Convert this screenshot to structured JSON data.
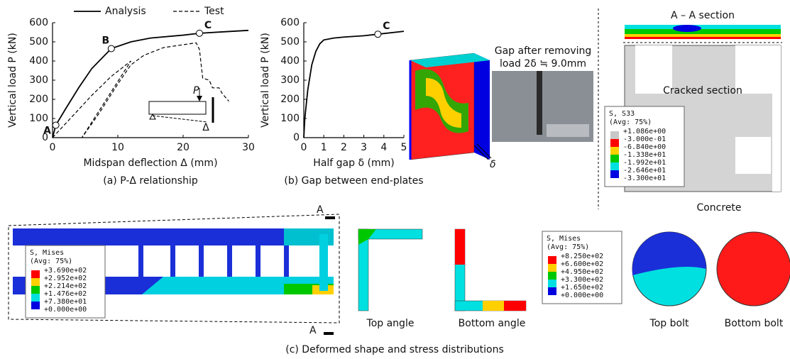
{
  "chart_data": [
    {
      "type": "line",
      "legend": "top",
      "xlabel": "Midspan deflection Δ (mm)",
      "ylabel": "Vertical load P (kN)",
      "caption": "(a) P-Δ relationship",
      "xlim": [
        0,
        30
      ],
      "xticks": [
        0,
        10,
        20,
        30
      ],
      "ylim": [
        0,
        600
      ],
      "yticks": [
        0,
        100,
        200,
        300,
        400,
        500,
        600
      ],
      "series": [
        {
          "name": "Analysis",
          "color": "#000000",
          "dash": false,
          "x": [
            0,
            0.5,
            2,
            4,
            6,
            8,
            9,
            12,
            15,
            20,
            22.5,
            26,
            30
          ],
          "values": [
            0,
            65,
            150,
            260,
            360,
            430,
            465,
            500,
            520,
            535,
            545,
            552,
            560
          ]
        },
        {
          "name": "Test",
          "color": "#000000",
          "dash": true,
          "x": [
            0,
            3,
            6,
            9,
            12,
            4.5,
            7,
            10,
            12,
            14,
            17,
            20,
            22,
            22.5,
            22.8,
            23,
            24,
            24.5,
            25.5,
            26,
            27
          ],
          "values": [
            0,
            110,
            220,
            320,
            400,
            0,
            120,
            280,
            380,
            430,
            470,
            485,
            495,
            460,
            370,
            310,
            300,
            260,
            260,
            230,
            190
          ]
        }
      ],
      "points": [
        {
          "label": "A",
          "x": 0.5,
          "y": 65
        },
        {
          "label": "B",
          "x": 9,
          "y": 465
        },
        {
          "label": "C",
          "x": 22.5,
          "y": 545
        }
      ],
      "annotations": [
        "P",
        "Δ"
      ]
    },
    {
      "type": "line",
      "xlabel": "Half gap δ (mm)",
      "ylabel": "Vertical load P (kN)",
      "caption": "(b) Gap between end-plates",
      "xlim": [
        0,
        5
      ],
      "xticks": [
        0,
        1,
        2,
        3,
        4,
        5
      ],
      "ylim": [
        0,
        600
      ],
      "yticks": [
        0,
        100,
        200,
        300,
        400,
        500,
        600
      ],
      "series": [
        {
          "color": "#000000",
          "dash": false,
          "x": [
            0,
            0.05,
            0.2,
            0.4,
            0.6,
            0.8,
            1,
            1.5,
            2,
            3,
            3.7,
            5
          ],
          "values": [
            0,
            100,
            250,
            380,
            450,
            490,
            510,
            520,
            525,
            532,
            540,
            555
          ]
        }
      ],
      "points": [
        {
          "label": "C",
          "x": 3.7,
          "y": 540
        }
      ]
    }
  ],
  "figures": {
    "gap_note": [
      "Gap after removing",
      "load 2δ ≒ 9.0mm"
    ],
    "delta_label": "δ",
    "section_title": "A – A section",
    "cracked_label": "Cracked section",
    "concrete_label": "Concrete",
    "s33_legend": {
      "title": "S, S33",
      "avg": "(Avg: 75%)",
      "values": [
        "+1.086e+00",
        "-3.000e-01",
        "-6.840e+00",
        "-1.338e+01",
        "-1.992e+01",
        "-2.646e+01",
        "-3.300e+01"
      ],
      "colors": [
        "#c8c8c8",
        "#ff0000",
        "#ffd000",
        "#00c800",
        "#00e0e0",
        "#0000e0"
      ]
    },
    "mises_legend": {
      "title": "S, Mises",
      "avg": "(Avg: 75%)",
      "values": [
        "+3.690e+02",
        "+2.952e+02",
        "+2.214e+02",
        "+1.476e+02",
        "+7.380e+01",
        "+0.000e+00"
      ],
      "colors": [
        "#ff0000",
        "#ffd000",
        "#00c800",
        "#00e0e0",
        "#0000e0"
      ]
    },
    "bolt_legend": {
      "title": "S, Mises",
      "avg": "(Avg: 75%)",
      "values": [
        "+8.250e+02",
        "+6.600e+02",
        "+4.950e+02",
        "+3.300e+02",
        "+1.650e+02",
        "+0.000e+00"
      ],
      "colors": [
        "#ff0000",
        "#ffd000",
        "#00c800",
        "#00e0e0",
        "#0000e0"
      ]
    },
    "section_marks": [
      "A",
      "A"
    ],
    "angle_labels": [
      "Top angle",
      "Bottom angle"
    ],
    "bolt_labels": [
      "Top bolt",
      "Bottom bolt"
    ],
    "caption": "(c) Deformed shape and stress distributions"
  }
}
